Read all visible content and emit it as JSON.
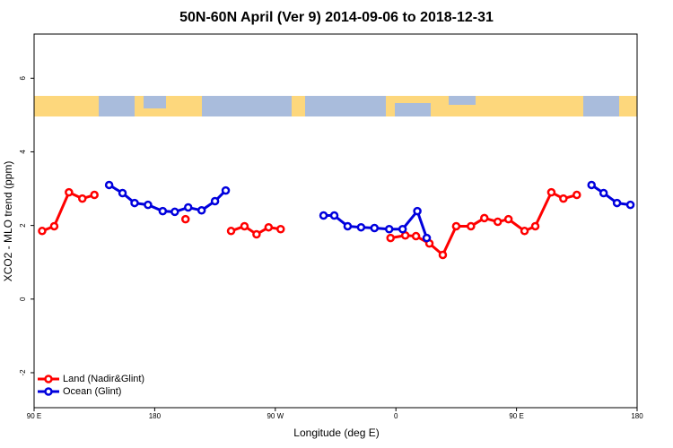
{
  "chart_data": {
    "type": "line",
    "title": "50N-60N April (Ver 9)   2014-09-06 to 2018-12-31",
    "x_label": "Longitude (deg E)",
    "y_label": "XCO2 - MLO trend (ppm)",
    "xlim": [
      90,
      540
    ],
    "xticks": [
      {
        "value": 90,
        "label": "90 E"
      },
      180,
      {
        "value": 270,
        "label": "90 W"
      },
      {
        "value": 360,
        "label": "0"
      },
      {
        "value": 450,
        "label": "90 E"
      },
      {
        "value": 540,
        "label": "180"
      }
    ],
    "ylim": [
      -2.95,
      7.2
    ],
    "yticks": [
      -2,
      0,
      2,
      4,
      6
    ],
    "legend": "bottom-left",
    "series": [
      {
        "name": "Land (Nadir&Glint)",
        "color": "#ff0000",
        "x": [
          96,
          105,
          116,
          126,
          135,
          null,
          203,
          null,
          237,
          247,
          256,
          265,
          274,
          null,
          356,
          367,
          375,
          385,
          395,
          405,
          416,
          426,
          436,
          444,
          456,
          464,
          476,
          485,
          495
        ],
        "values": [
          1.85,
          1.98,
          2.9,
          2.73,
          2.83,
          null,
          2.17,
          null,
          1.85,
          1.98,
          1.76,
          1.95,
          1.9,
          null,
          1.66,
          1.73,
          1.71,
          1.51,
          1.2,
          1.98,
          1.98,
          2.2,
          2.1,
          2.17,
          1.85,
          1.98,
          2.9,
          2.73,
          2.83
        ]
      },
      {
        "name": "Ocean (Glint)",
        "color": "#0000dd",
        "x": [
          146,
          156,
          165,
          175,
          186,
          195,
          205,
          215,
          225,
          233,
          null,
          306,
          314,
          324,
          334,
          344,
          355,
          365,
          376,
          383,
          null,
          506,
          515,
          525,
          535
        ],
        "values": [
          3.1,
          2.88,
          2.61,
          2.56,
          2.39,
          2.37,
          2.49,
          2.41,
          2.66,
          2.95,
          null,
          2.27,
          2.27,
          1.98,
          1.95,
          1.93,
          1.9,
          1.9,
          2.39,
          1.66,
          null,
          3.1,
          2.88,
          2.61,
          2.56
        ]
      }
    ]
  }
}
